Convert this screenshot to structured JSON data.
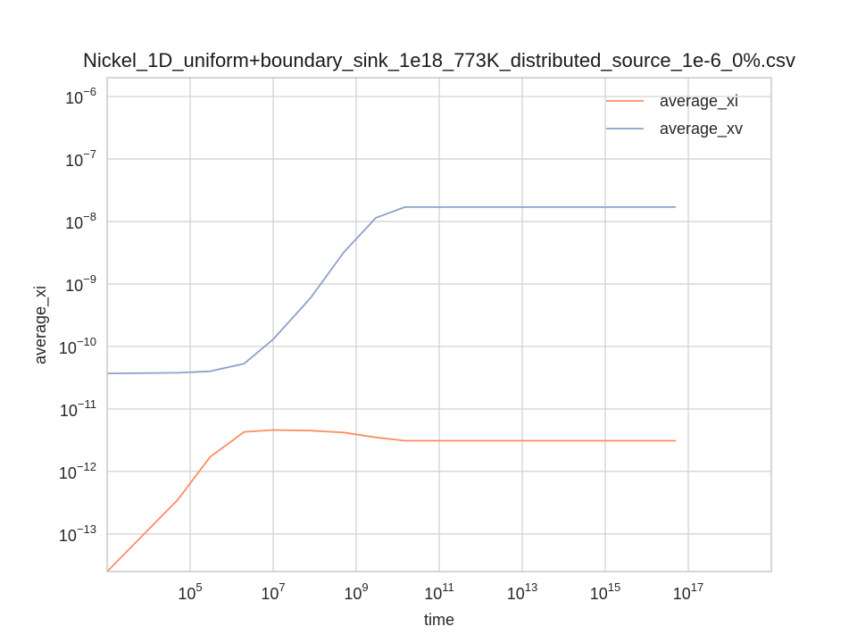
{
  "chart_data": {
    "type": "line",
    "title": "Nickel_1D_uniform+boundary_sink_1e18_773K_distributed_source_1e-6_0%.csv",
    "xlabel": "time",
    "ylabel": "average_xi",
    "xscale": "log",
    "yscale": "log",
    "xlim": [
      1000,
      1e+19
    ],
    "ylim": [
      2.5e-14,
      2e-06
    ],
    "grid": true,
    "legend_position": "top-right",
    "x_ticks": [
      {
        "base": "10",
        "exp": "5",
        "value": 100000.0
      },
      {
        "base": "10",
        "exp": "7",
        "value": 10000000.0
      },
      {
        "base": "10",
        "exp": "9",
        "value": 1000000000.0
      },
      {
        "base": "10",
        "exp": "11",
        "value": 100000000000.0
      },
      {
        "base": "10",
        "exp": "13",
        "value": 10000000000000.0
      },
      {
        "base": "10",
        "exp": "15",
        "value": 1000000000000000.0
      },
      {
        "base": "10",
        "exp": "17",
        "value": 1e+17
      }
    ],
    "y_ticks": [
      {
        "base": "10",
        "exp": "−13",
        "value": 1e-13
      },
      {
        "base": "10",
        "exp": "−12",
        "value": 1e-12
      },
      {
        "base": "10",
        "exp": "−11",
        "value": 1e-11
      },
      {
        "base": "10",
        "exp": "−10",
        "value": 1e-10
      },
      {
        "base": "10",
        "exp": "−9",
        "value": 1e-09
      },
      {
        "base": "10",
        "exp": "−8",
        "value": 1e-08
      },
      {
        "base": "10",
        "exp": "−7",
        "value": 1e-07
      },
      {
        "base": "10",
        "exp": "−6",
        "value": 1e-06
      }
    ],
    "series": [
      {
        "name": "average_xi",
        "color": "#fc8d62",
        "x": [
          1000,
          50000.0,
          300000.0,
          2000000.0,
          10000000.0,
          80000000.0,
          500000000.0,
          3000000000.0,
          15000000000.0,
          100000000000.0,
          10000000000000.0,
          1000000000000000.0,
          5e+16
        ],
        "y": [
          2.5e-14,
          3.5e-13,
          1.7e-12,
          4.3e-12,
          4.6e-12,
          4.5e-12,
          4.2e-12,
          3.5e-12,
          3.1e-12,
          3.1e-12,
          3.1e-12,
          3.1e-12,
          3.1e-12
        ]
      },
      {
        "name": "average_xv",
        "color": "#8da0cb",
        "x": [
          1000,
          50000.0,
          300000.0,
          2000000.0,
          10000000.0,
          80000000.0,
          500000000.0,
          3000000000.0,
          15000000000.0,
          100000000000.0,
          10000000000000.0,
          1000000000000000.0,
          5e+16
        ],
        "y": [
          3.7e-11,
          3.8e-11,
          4e-11,
          5.3e-11,
          1.3e-10,
          6e-10,
          3.2e-09,
          1.15e-08,
          1.7e-08,
          1.7e-08,
          1.7e-08,
          1.7e-08,
          1.7e-08
        ]
      }
    ]
  }
}
